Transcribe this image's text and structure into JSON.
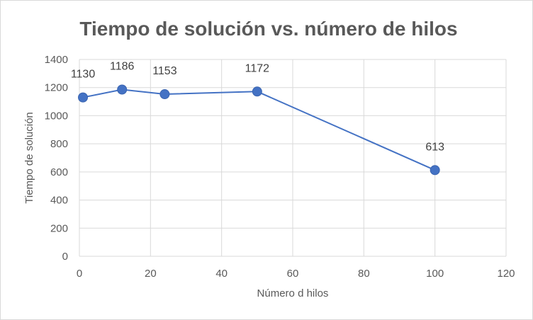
{
  "chart_data": {
    "type": "scatter",
    "title": "Tiempo de solución vs. número de hilos",
    "xlabel": "Número d hilos",
    "ylabel": "Tiempo de solución",
    "xlim": [
      0,
      120
    ],
    "ylim": [
      0,
      1400
    ],
    "xticks": [
      0,
      20,
      40,
      60,
      80,
      100,
      120
    ],
    "yticks": [
      0,
      200,
      400,
      600,
      800,
      1000,
      1200,
      1400
    ],
    "grid": true,
    "legend": "none",
    "line_color": "#4472c4",
    "marker_color": "#4472c4",
    "series": [
      {
        "x": [
          1,
          12,
          24,
          50,
          100
        ],
        "y": [
          1130,
          1186,
          1153,
          1172,
          613
        ],
        "data_labels": [
          "1130",
          "1186",
          "1153",
          "1172",
          "613"
        ]
      }
    ]
  }
}
